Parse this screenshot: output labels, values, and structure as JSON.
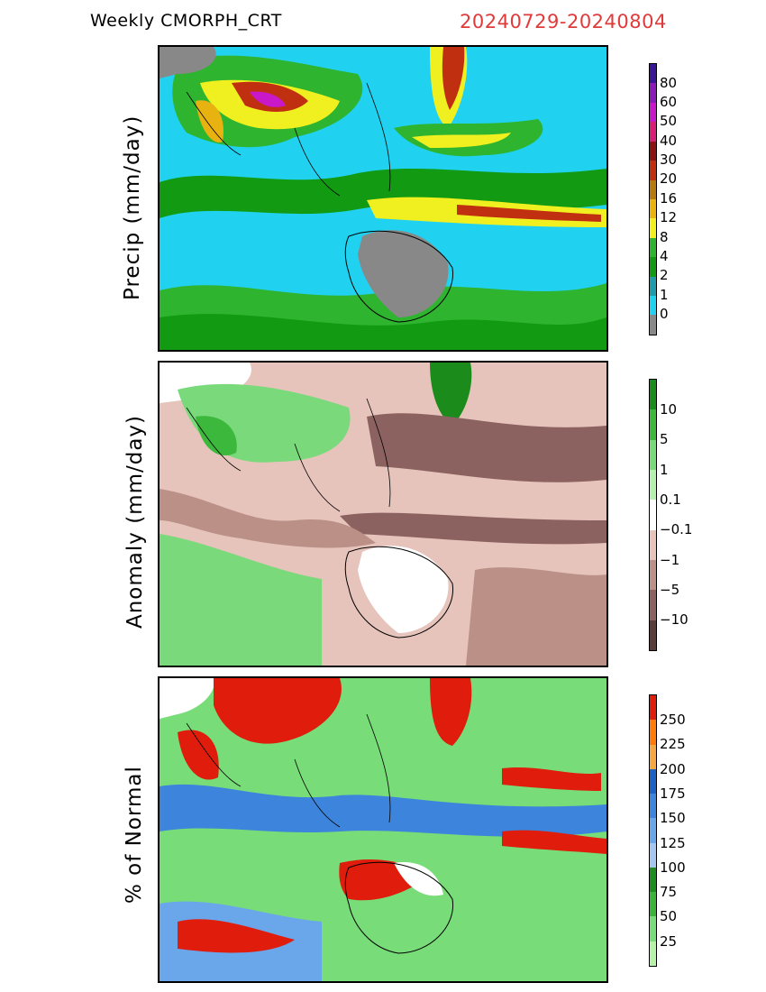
{
  "header": {
    "product": "Weekly CMORPH_CRT",
    "period": "20240729-20240804"
  },
  "chart_data": [
    {
      "type": "heatmap",
      "ylabel": "Precip (mm/day)",
      "colorbar": {
        "ticks": [
          "80",
          "60",
          "50",
          "40",
          "30",
          "20",
          "16",
          "12",
          "8",
          "4",
          "2",
          "1",
          "0"
        ],
        "colors": [
          "#3a1596",
          "#8c1ab8",
          "#c818c8",
          "#d81f76",
          "#8a1412",
          "#c03010",
          "#b77a10",
          "#e8b210",
          "#f0f020",
          "#2eb42e",
          "#129b12",
          "#1e9caa",
          "#20d2f0",
          "#888888"
        ]
      }
    },
    {
      "type": "heatmap",
      "ylabel": "Anomaly (mm/day)",
      "colorbar": {
        "ticks": [
          "10",
          "5",
          "1",
          "0.1",
          "−0.1",
          "−1",
          "−5",
          "−10"
        ],
        "colors": [
          "#1b8c1b",
          "#3cb83c",
          "#7ad97a",
          "#b6f0b0",
          "#ffffff",
          "#e6c4bc",
          "#bb9087",
          "#8c6260",
          "#5a3c3a"
        ]
      }
    },
    {
      "type": "heatmap",
      "ylabel": "% of Normal",
      "colorbar": {
        "ticks": [
          "250",
          "225",
          "200",
          "175",
          "150",
          "125",
          "100",
          "75",
          "50",
          "25"
        ],
        "colors": [
          "#e01c0c",
          "#ff7a0a",
          "#f4a844",
          "#1c62c4",
          "#3c84dc",
          "#6aa6ea",
          "#a6c6f2",
          "#1e8c1e",
          "#3cb43c",
          "#78dc78",
          "#b6f2a8"
        ]
      }
    }
  ]
}
